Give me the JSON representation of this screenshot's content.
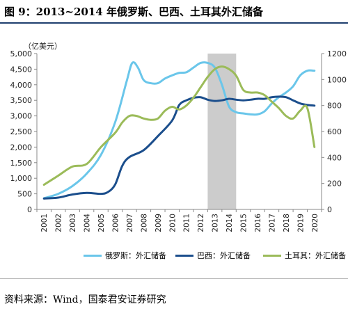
{
  "title": "图 9：2013~2014 年俄罗斯、巴西、土耳其外汇储备",
  "unit_label": "（亿美元）",
  "source": "资料来源：Wind，国泰君安证券研究",
  "chart_data": {
    "type": "line",
    "categories": [
      "2001",
      "2002",
      "2003",
      "2004",
      "2005",
      "2006",
      "2007",
      "2008",
      "2009",
      "2010",
      "2011",
      "2012",
      "2013",
      "2014",
      "2015",
      "2016",
      "2017",
      "2018",
      "2019",
      "2020"
    ],
    "left_axis": {
      "min": 0,
      "max": 5000,
      "ticks": [
        "0",
        "500",
        "1,000",
        "1,500",
        "2,000",
        "2,500",
        "3,000",
        "3,500",
        "4,000",
        "4,500",
        "5,000"
      ]
    },
    "right_axis": {
      "min": 0,
      "max": 1200,
      "ticks": [
        "0",
        "200",
        "400",
        "600",
        "800",
        "1000",
        "1200"
      ]
    },
    "shaded_range": [
      "2013",
      "2014"
    ],
    "series": [
      {
        "name": "俄罗斯：外汇储备",
        "axis": "left",
        "color": "#6ac6ea",
        "x": [
          2001.0,
          2002.0,
          2003.0,
          2004.0,
          2005.0,
          2006.0,
          2006.8,
          2007.2,
          2007.6,
          2008.0,
          2008.5,
          2009.0,
          2009.5,
          2010.0,
          2010.5,
          2011.0,
          2011.5,
          2012.0,
          2012.5,
          2013.0,
          2013.5,
          2014.0,
          2014.5,
          2015.0,
          2015.5,
          2016.0,
          2016.5,
          2017.0,
          2017.5,
          2018.0,
          2018.5,
          2019.0,
          2019.5,
          2020.0
        ],
        "values": [
          360,
          500,
          750,
          1150,
          1750,
          2800,
          4100,
          4700,
          4550,
          4150,
          4050,
          4050,
          4200,
          4300,
          4380,
          4400,
          4550,
          4700,
          4700,
          4550,
          4000,
          3300,
          3120,
          3080,
          3050,
          3050,
          3150,
          3400,
          3600,
          3750,
          3950,
          4300,
          4450,
          4450
        ]
      },
      {
        "name": "巴西：外汇储备",
        "axis": "left",
        "color": "#1b4e8c",
        "x": [
          2001.0,
          2002.0,
          2003.0,
          2004.0,
          2005.0,
          2005.5,
          2006.0,
          2006.5,
          2007.0,
          2008.0,
          2009.0,
          2010.0,
          2010.5,
          2011.0,
          2011.5,
          2012.0,
          2012.5,
          2013.0,
          2013.5,
          2014.0,
          2014.5,
          2015.0,
          2015.5,
          2016.0,
          2016.5,
          2017.0,
          2017.5,
          2018.0,
          2018.5,
          2019.0,
          2019.5,
          2020.0
        ],
        "values": [
          350,
          380,
          480,
          530,
          500,
          560,
          800,
          1400,
          1680,
          1900,
          2350,
          2850,
          3350,
          3500,
          3580,
          3600,
          3520,
          3480,
          3500,
          3550,
          3520,
          3500,
          3520,
          3550,
          3550,
          3600,
          3620,
          3600,
          3500,
          3400,
          3350,
          3330
        ]
      },
      {
        "name": "土耳其：外汇储备",
        "axis": "right",
        "color": "#9bbb59",
        "x": [
          2001.0,
          2002.0,
          2003.0,
          2004.0,
          2005.0,
          2006.0,
          2006.5,
          2007.0,
          2007.5,
          2008.0,
          2008.5,
          2009.0,
          2009.5,
          2010.0,
          2010.5,
          2011.0,
          2011.5,
          2012.0,
          2012.5,
          2013.0,
          2013.5,
          2014.0,
          2014.5,
          2015.0,
          2015.5,
          2016.0,
          2016.5,
          2017.0,
          2017.5,
          2018.0,
          2018.5,
          2019.0,
          2019.5,
          2020.0
        ],
        "values": [
          190,
          260,
          330,
          350,
          480,
          590,
          670,
          720,
          720,
          700,
          690,
          700,
          760,
          790,
          770,
          800,
          860,
          940,
          1020,
          1080,
          1100,
          1080,
          1030,
          920,
          900,
          900,
          880,
          830,
          780,
          720,
          700,
          760,
          780,
          480
        ]
      }
    ]
  }
}
